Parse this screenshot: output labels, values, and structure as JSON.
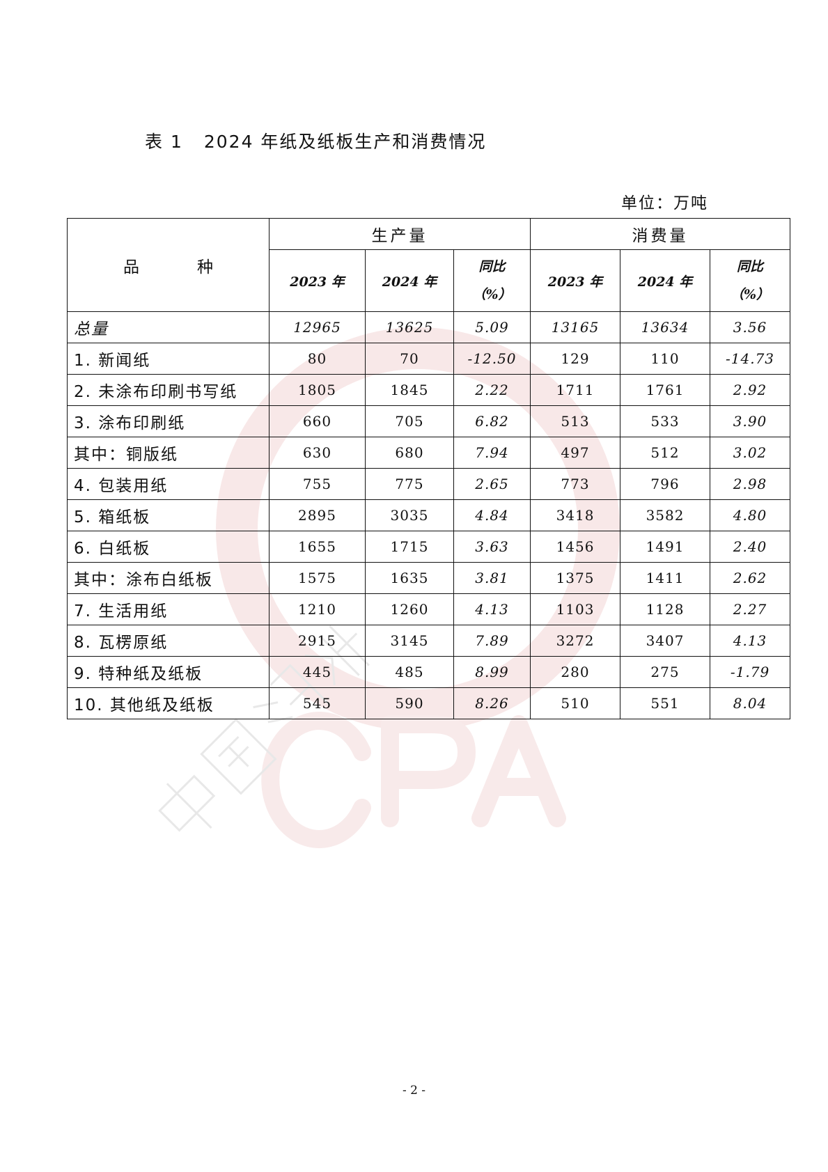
{
  "title": {
    "label": "表 1",
    "text": "2024 年纸及纸板生产和消费情况"
  },
  "unit": "单位：万吨",
  "table": {
    "category_header": "品　种",
    "groups": [
      "生产量",
      "消费量"
    ],
    "subheaders": [
      "2023 年",
      "2024 年",
      "同比",
      "（%）"
    ],
    "rows": [
      {
        "name": "总量",
        "p2023": "12965",
        "p2024": "13625",
        "pyoy": "5.09",
        "c2023": "13165",
        "c2024": "13634",
        "cyoy": "3.56"
      },
      {
        "name": "1. 新闻纸",
        "p2023": "80",
        "p2024": "70",
        "pyoy": "-12.50",
        "c2023": "129",
        "c2024": "110",
        "cyoy": "-14.73"
      },
      {
        "name": "2. 未涂布印刷书写纸",
        "p2023": "1805",
        "p2024": "1845",
        "pyoy": "2.22",
        "c2023": "1711",
        "c2024": "1761",
        "cyoy": "2.92"
      },
      {
        "name": "3. 涂布印刷纸",
        "p2023": "660",
        "p2024": "705",
        "pyoy": "6.82",
        "c2023": "513",
        "c2024": "533",
        "cyoy": "3.90"
      },
      {
        "name": "其中：铜版纸",
        "p2023": "630",
        "p2024": "680",
        "pyoy": "7.94",
        "c2023": "497",
        "c2024": "512",
        "cyoy": "3.02"
      },
      {
        "name": "4. 包装用纸",
        "p2023": "755",
        "p2024": "775",
        "pyoy": "2.65",
        "c2023": "773",
        "c2024": "796",
        "cyoy": "2.98"
      },
      {
        "name": "5. 箱纸板",
        "p2023": "2895",
        "p2024": "3035",
        "pyoy": "4.84",
        "c2023": "3418",
        "c2024": "3582",
        "cyoy": "4.80"
      },
      {
        "name": "6. 白纸板",
        "p2023": "1655",
        "p2024": "1715",
        "pyoy": "3.63",
        "c2023": "1456",
        "c2024": "1491",
        "cyoy": "2.40"
      },
      {
        "name": "其中：涂布白纸板",
        "p2023": "1575",
        "p2024": "1635",
        "pyoy": "3.81",
        "c2023": "1375",
        "c2024": "1411",
        "cyoy": "2.62"
      },
      {
        "name": "7. 生活用纸",
        "p2023": "1210",
        "p2024": "1260",
        "pyoy": "4.13",
        "c2023": "1103",
        "c2024": "1128",
        "cyoy": "2.27"
      },
      {
        "name": "8. 瓦楞原纸",
        "p2023": "2915",
        "p2024": "3145",
        "pyoy": "7.89",
        "c2023": "3272",
        "c2024": "3407",
        "cyoy": "4.13"
      },
      {
        "name": "9. 特种纸及纸板",
        "p2023": "445",
        "p2024": "485",
        "pyoy": "8.99",
        "c2023": "280",
        "c2024": "275",
        "cyoy": "-1.79"
      },
      {
        "name": "10. 其他纸及纸板",
        "p2023": "545",
        "p2024": "590",
        "pyoy": "8.26",
        "c2023": "510",
        "c2024": "551",
        "cyoy": "8.04"
      }
    ]
  },
  "watermark": {
    "logo_text": "CPA",
    "chinese_text": "中国造纸协会",
    "color": "#f3d9d9"
  },
  "page_number": "- 2 -"
}
